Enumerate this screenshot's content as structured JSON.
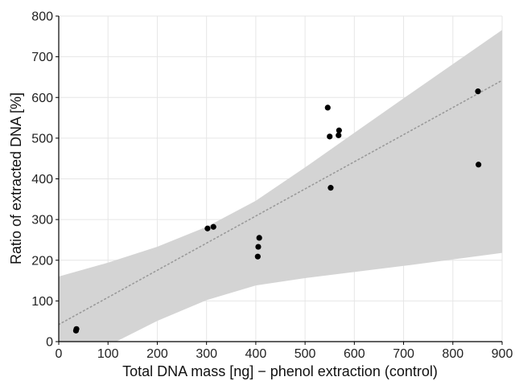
{
  "chart_data": {
    "type": "scatter",
    "xlabel": "Total DNA mass [ng] − phenol extraction (control)",
    "ylabel": "Ratio of extracted DNA [%]",
    "xlim": [
      0,
      900
    ],
    "ylim": [
      0,
      800
    ],
    "xticks": [
      "0",
      "100",
      "200",
      "300",
      "400",
      "500",
      "600",
      "700",
      "800",
      "900"
    ],
    "yticks": [
      "0",
      "100",
      "200",
      "300",
      "400",
      "500",
      "600",
      "700",
      "800"
    ],
    "grid": true,
    "points": [
      {
        "x": 35,
        "y": 27
      },
      {
        "x": 36,
        "y": 31
      },
      {
        "x": 302,
        "y": 278
      },
      {
        "x": 314,
        "y": 282
      },
      {
        "x": 404,
        "y": 209
      },
      {
        "x": 405,
        "y": 233
      },
      {
        "x": 407,
        "y": 255
      },
      {
        "x": 546,
        "y": 575
      },
      {
        "x": 550,
        "y": 504
      },
      {
        "x": 552,
        "y": 378
      },
      {
        "x": 568,
        "y": 507
      },
      {
        "x": 569,
        "y": 519
      },
      {
        "x": 851,
        "y": 615
      },
      {
        "x": 852,
        "y": 435
      }
    ],
    "trend_line": {
      "style": "dotted",
      "color": "#999999",
      "x": [
        0,
        900
      ],
      "y": [
        42,
        642
      ]
    },
    "confidence_band": {
      "color": "#d4d4d4",
      "x": [
        0,
        100,
        200,
        300,
        400,
        500,
        600,
        700,
        800,
        900
      ],
      "upper": [
        160,
        194,
        233,
        282,
        346,
        428,
        513,
        598,
        682,
        766
      ],
      "lower": [
        -76,
        -10,
        51,
        102,
        138,
        156,
        171,
        186,
        202,
        218
      ]
    },
    "colors": {
      "points": "#000000",
      "grid": "#e6e6e6",
      "axis": "#000000"
    }
  }
}
